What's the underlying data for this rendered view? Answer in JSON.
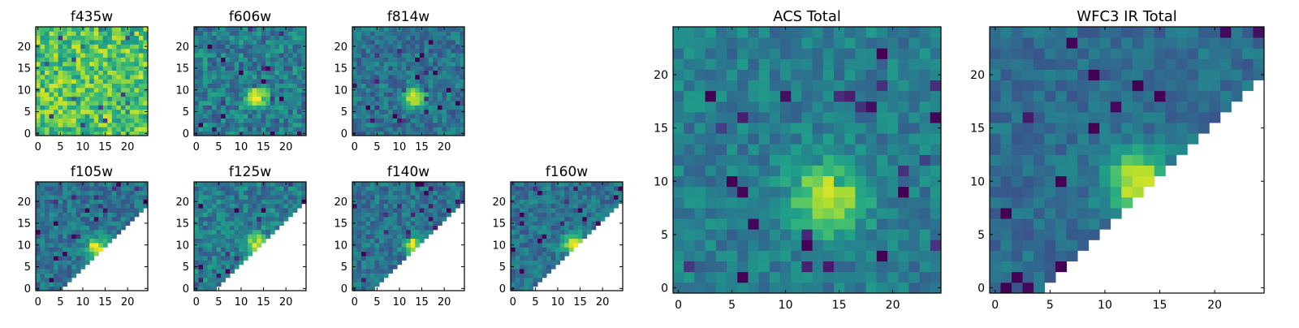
{
  "chart_data": [
    {
      "type": "heatmap",
      "title": "f435w",
      "x_ticks": [
        0,
        5,
        10,
        15,
        20
      ],
      "y_ticks": [
        0,
        5,
        10,
        15,
        20
      ],
      "xlim": [
        0,
        25
      ],
      "ylim": [
        0,
        25
      ],
      "grid_size": 25,
      "colormap": "viridis",
      "source": {
        "mode": "noise",
        "seed": 11,
        "base": 0.72,
        "noise": 0.22
      }
    },
    {
      "type": "heatmap",
      "title": "f606w",
      "x_ticks": [
        0,
        5,
        10,
        15,
        20
      ],
      "y_ticks": [
        0,
        5,
        10,
        15,
        20
      ],
      "xlim": [
        0,
        25
      ],
      "ylim": [
        0,
        25
      ],
      "grid_size": 25,
      "colormap": "viridis",
      "source": {
        "mode": "peak",
        "seed": 21,
        "base": 0.42,
        "noise": 0.18,
        "peak_x": 13.5,
        "peak_y": 8.5,
        "peak_sigma": 1.7,
        "peak_amp": 0.6
      }
    },
    {
      "type": "heatmap",
      "title": "f814w",
      "x_ticks": [
        0,
        5,
        10,
        15,
        20
      ],
      "y_ticks": [
        0,
        5,
        10,
        15,
        20
      ],
      "xlim": [
        0,
        25
      ],
      "ylim": [
        0,
        25
      ],
      "grid_size": 25,
      "colormap": "viridis",
      "source": {
        "mode": "peak",
        "seed": 31,
        "base": 0.38,
        "noise": 0.15,
        "peak_x": 13.5,
        "peak_y": 8.5,
        "peak_sigma": 1.5,
        "peak_amp": 0.65
      }
    },
    {
      "type": "heatmap",
      "title": "f105w",
      "x_ticks": [
        0,
        5,
        10,
        15,
        20
      ],
      "y_ticks": [
        0,
        5,
        10,
        15,
        20
      ],
      "xlim": [
        0,
        25
      ],
      "ylim": [
        0,
        25
      ],
      "grid_size": 25,
      "colormap": "viridis",
      "source": {
        "mode": "triangle",
        "seed": 41,
        "base": 0.38,
        "noise": 0.14,
        "peak_x": 13,
        "peak_y": 9.5,
        "peak_sigma": 1.6,
        "peak_amp": 0.6,
        "mask_offset": 5
      }
    },
    {
      "type": "heatmap",
      "title": "f125w",
      "x_ticks": [
        0,
        5,
        10,
        15,
        20
      ],
      "y_ticks": [
        0,
        5,
        10,
        15,
        20
      ],
      "xlim": [
        0,
        25
      ],
      "ylim": [
        0,
        25
      ],
      "grid_size": 25,
      "colormap": "viridis",
      "source": {
        "mode": "triangle",
        "seed": 51,
        "base": 0.42,
        "noise": 0.16,
        "peak_x": 13.5,
        "peak_y": 10,
        "peak_sigma": 1.7,
        "peak_amp": 0.55,
        "mask_offset": 4
      }
    },
    {
      "type": "heatmap",
      "title": "f140w",
      "x_ticks": [
        0,
        5,
        10,
        15,
        20
      ],
      "y_ticks": [
        0,
        5,
        10,
        15,
        20
      ],
      "xlim": [
        0,
        25
      ],
      "ylim": [
        0,
        25
      ],
      "grid_size": 25,
      "colormap": "viridis",
      "source": {
        "mode": "triangle",
        "seed": 61,
        "base": 0.38,
        "noise": 0.14,
        "peak_x": 13,
        "peak_y": 10,
        "peak_sigma": 1.5,
        "peak_amp": 0.6,
        "mask_offset": 4
      }
    },
    {
      "type": "heatmap",
      "title": "f160w",
      "x_ticks": [
        0,
        5,
        10,
        15,
        20
      ],
      "y_ticks": [
        0,
        5,
        10,
        15,
        20
      ],
      "xlim": [
        0,
        25
      ],
      "ylim": [
        0,
        25
      ],
      "grid_size": 25,
      "colormap": "viridis",
      "source": {
        "mode": "triangle",
        "seed": 71,
        "base": 0.38,
        "noise": 0.14,
        "peak_x": 13.5,
        "peak_y": 10,
        "peak_sigma": 1.6,
        "peak_amp": 0.6,
        "mask_offset": 4
      }
    },
    {
      "type": "heatmap",
      "title": "ACS Total",
      "x_ticks": [
        0,
        5,
        10,
        15,
        20
      ],
      "y_ticks": [
        0,
        5,
        10,
        15,
        20
      ],
      "xlim": [
        0,
        25
      ],
      "ylim": [
        0,
        25
      ],
      "grid_size": 25,
      "colormap": "viridis",
      "source": {
        "mode": "peak",
        "seed": 81,
        "base": 0.42,
        "noise": 0.12,
        "peak_x": 14,
        "peak_y": 8.5,
        "peak_sigma": 2.2,
        "peak_amp": 0.55
      }
    },
    {
      "type": "heatmap",
      "title": "WFC3 IR Total",
      "x_ticks": [
        0,
        5,
        10,
        15,
        20
      ],
      "y_ticks": [
        0,
        5,
        10,
        15,
        20
      ],
      "xlim": [
        0,
        25
      ],
      "ylim": [
        0,
        25
      ],
      "grid_size": 25,
      "colormap": "viridis",
      "source": {
        "mode": "triangle",
        "seed": 91,
        "base": 0.36,
        "noise": 0.1,
        "peak_x": 13,
        "peak_y": 10,
        "peak_sigma": 2.0,
        "peak_amp": 0.6,
        "mask_offset": 4
      }
    }
  ]
}
